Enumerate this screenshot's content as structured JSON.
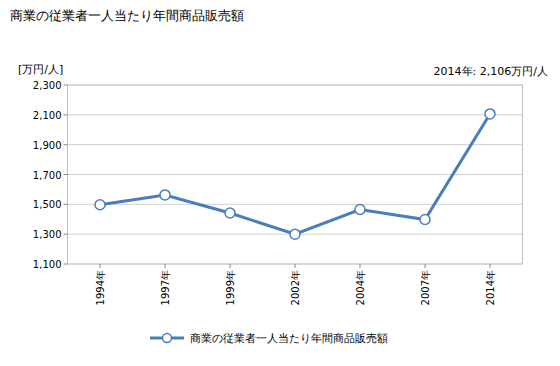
{
  "chart_data": {
    "type": "line",
    "title": "商業の従業者一人当たり年間商品販売額",
    "y_label": "[万円/人]",
    "annotation": "2014年: 2,106万円/人",
    "categories": [
      "1994年",
      "1997年",
      "1999年",
      "2002年",
      "2004年",
      "2007年",
      "2014年"
    ],
    "series": [
      {
        "name": "商業の従業者一人当たり年間商品販売額",
        "color": "#4a7ebb",
        "marker": "circle",
        "values": [
          1497,
          1563,
          1442,
          1300,
          1465,
          1398,
          2106
        ]
      }
    ],
    "ylim": [
      1100,
      2300
    ],
    "yticks": [
      {
        "value": 1100,
        "label": "1,100"
      },
      {
        "value": 1300,
        "label": "1,300"
      },
      {
        "value": 1500,
        "label": "1,500"
      },
      {
        "value": 1700,
        "label": "1,700"
      },
      {
        "value": 1900,
        "label": "1,900"
      },
      {
        "value": 2100,
        "label": "2,100"
      },
      {
        "value": 2300,
        "label": "2,300"
      }
    ],
    "grid": true,
    "legend": "bottom"
  }
}
